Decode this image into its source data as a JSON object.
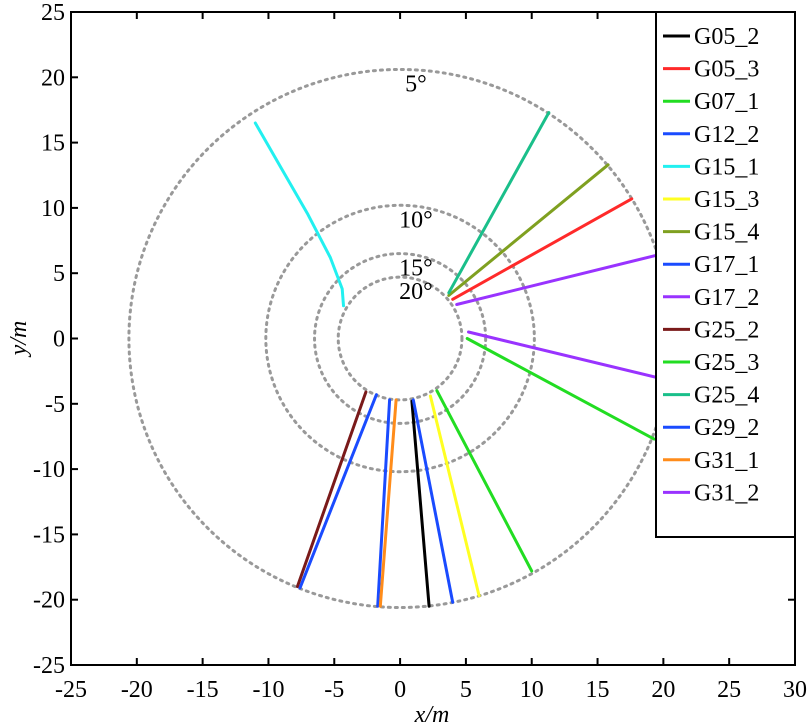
{
  "chart_data": {
    "type": "line",
    "title": "",
    "xlabel": "x/m",
    "ylabel": "y/m",
    "xlim": [
      -25,
      30
    ],
    "ylim": [
      -25,
      25
    ],
    "xticks": [
      -25,
      -20,
      -15,
      -10,
      -5,
      0,
      5,
      10,
      15,
      20,
      25,
      30
    ],
    "yticks": [
      -25,
      -20,
      -15,
      -10,
      -5,
      0,
      5,
      10,
      15,
      20,
      25
    ],
    "grid": false,
    "legend_position": "right",
    "elevation_circles": [
      {
        "label": "5°",
        "radius": 20.6
      },
      {
        "label": "10°",
        "radius": 10.2
      },
      {
        "label": "15°",
        "radius": 6.5
      },
      {
        "label": "20°",
        "radius": 4.7
      }
    ],
    "series": [
      {
        "name": "G05_2",
        "color": "#000000",
        "points": [
          [
            0.9,
            -4.8
          ],
          [
            2.2,
            -20.5
          ]
        ]
      },
      {
        "name": "G05_3",
        "color": "#ff2a2a",
        "points": [
          [
            4.0,
            3.0
          ],
          [
            17.6,
            10.7
          ]
        ]
      },
      {
        "name": "G07_1",
        "color": "#22dd22",
        "points": [
          [
            5.1,
            0.0
          ],
          [
            19.3,
            -7.7
          ]
        ]
      },
      {
        "name": "G12_2",
        "color": "#1a4bff",
        "points": [
          [
            1.0,
            -4.7
          ],
          [
            4.0,
            -20.2
          ]
        ]
      },
      {
        "name": "G15_1",
        "color": "#22f0f0",
        "points": [
          [
            -11.0,
            16.5
          ],
          [
            -9.0,
            13.0
          ],
          [
            -7.0,
            9.5
          ],
          [
            -5.3,
            6.2
          ],
          [
            -4.4,
            3.8
          ],
          [
            -4.3,
            2.5
          ]
        ]
      },
      {
        "name": "G15_3",
        "color": "#ffff22",
        "points": [
          [
            2.3,
            -4.4
          ],
          [
            6.0,
            -19.7
          ]
        ]
      },
      {
        "name": "G15_4",
        "color": "#7fa020",
        "points": [
          [
            3.7,
            3.3
          ],
          [
            15.8,
            13.3
          ]
        ]
      },
      {
        "name": "G17_1",
        "color": "#1a4bff",
        "points": [
          [
            -0.8,
            -4.7
          ],
          [
            -1.7,
            -20.5
          ]
        ]
      },
      {
        "name": "G17_2",
        "color": "#9933ff",
        "points": [
          [
            4.3,
            2.6
          ],
          [
            20.0,
            6.5
          ]
        ]
      },
      {
        "name": "G25_2",
        "color": "#7a1a1a",
        "points": [
          [
            -2.6,
            -4.1
          ],
          [
            -7.8,
            -19.0
          ]
        ]
      },
      {
        "name": "G25_3",
        "color": "#22dd22",
        "points": [
          [
            2.8,
            -4.0
          ],
          [
            10.0,
            -17.8
          ]
        ]
      },
      {
        "name": "G25_4",
        "color": "#1abf8a",
        "points": [
          [
            3.7,
            3.5
          ],
          [
            11.3,
            17.3
          ]
        ]
      },
      {
        "name": "G29_2",
        "color": "#1a4bff",
        "points": [
          [
            -1.8,
            -4.3
          ],
          [
            -7.6,
            -19.1
          ]
        ]
      },
      {
        "name": "G31_1",
        "color": "#ff8c1a",
        "points": [
          [
            -0.3,
            -4.7
          ],
          [
            -1.5,
            -20.5
          ]
        ]
      },
      {
        "name": "G31_2",
        "color": "#9933ff",
        "points": [
          [
            5.2,
            0.5
          ],
          [
            20.4,
            -3.2
          ]
        ]
      }
    ]
  }
}
